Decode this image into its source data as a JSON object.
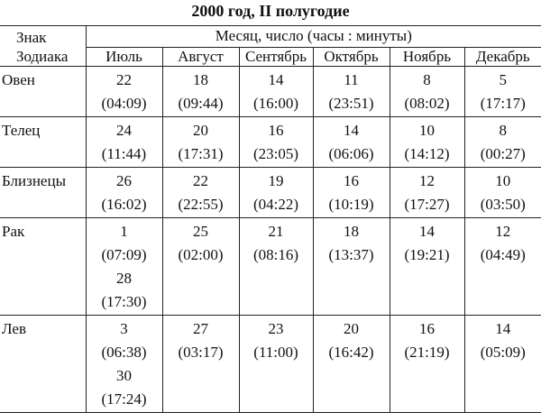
{
  "title": "2000 год, II полугодие",
  "table": {
    "corner": "Знак Зодиака",
    "group_header": "Месяц, число (часы : минуты)",
    "months": [
      "Июль",
      "Август",
      "Сентябрь",
      "Октябрь",
      "Ноябрь",
      "Декабрь"
    ],
    "rows": [
      {
        "sign": "Овен",
        "cells": [
          [
            {
              "day": "22",
              "time": "(04:09)"
            }
          ],
          [
            {
              "day": "18",
              "time": "(09:44)"
            }
          ],
          [
            {
              "day": "14",
              "time": "(16:00)"
            }
          ],
          [
            {
              "day": "11",
              "time": "(23:51)"
            }
          ],
          [
            {
              "day": "8",
              "time": "(08:02)"
            }
          ],
          [
            {
              "day": "5",
              "time": "(17:17)"
            }
          ]
        ]
      },
      {
        "sign": "Телец",
        "cells": [
          [
            {
              "day": "24",
              "time": "(11:44)"
            }
          ],
          [
            {
              "day": "20",
              "time": "(17:31)"
            }
          ],
          [
            {
              "day": "16",
              "time": "(23:05)"
            }
          ],
          [
            {
              "day": "14",
              "time": "(06:06)"
            }
          ],
          [
            {
              "day": "10",
              "time": "(14:12)"
            }
          ],
          [
            {
              "day": "8",
              "time": "(00:27)"
            }
          ]
        ]
      },
      {
        "sign": "Близнецы",
        "cells": [
          [
            {
              "day": "26",
              "time": "(16:02)"
            }
          ],
          [
            {
              "day": "22",
              "time": "(22:55)"
            }
          ],
          [
            {
              "day": "19",
              "time": "(04:22)"
            }
          ],
          [
            {
              "day": "16",
              "time": "(10:19)"
            }
          ],
          [
            {
              "day": "12",
              "time": "(17:27)"
            }
          ],
          [
            {
              "day": "10",
              "time": "(03:50)"
            }
          ]
        ]
      },
      {
        "sign": "Рак",
        "cells": [
          [
            {
              "day": "1",
              "time": "(07:09)"
            },
            {
              "day": "28",
              "time": "(17:30)"
            }
          ],
          [
            {
              "day": "25",
              "time": "(02:00)"
            }
          ],
          [
            {
              "day": "21",
              "time": "(08:16)"
            }
          ],
          [
            {
              "day": "18",
              "time": "(13:37)"
            }
          ],
          [
            {
              "day": "14",
              "time": "(19:21)"
            }
          ],
          [
            {
              "day": "12",
              "time": "(04:49)"
            }
          ]
        ]
      },
      {
        "sign": "Лев",
        "cells": [
          [
            {
              "day": "3",
              "time": "(06:38)"
            },
            {
              "day": "30",
              "time": "(17:24)"
            }
          ],
          [
            {
              "day": "27",
              "time": "(03:17)"
            }
          ],
          [
            {
              "day": "23",
              "time": "(11:00)"
            }
          ],
          [
            {
              "day": "20",
              "time": "(16:42)"
            }
          ],
          [
            {
              "day": "16",
              "time": "(21:19)"
            }
          ],
          [
            {
              "day": "14",
              "time": "(05:09)"
            }
          ]
        ]
      }
    ]
  }
}
